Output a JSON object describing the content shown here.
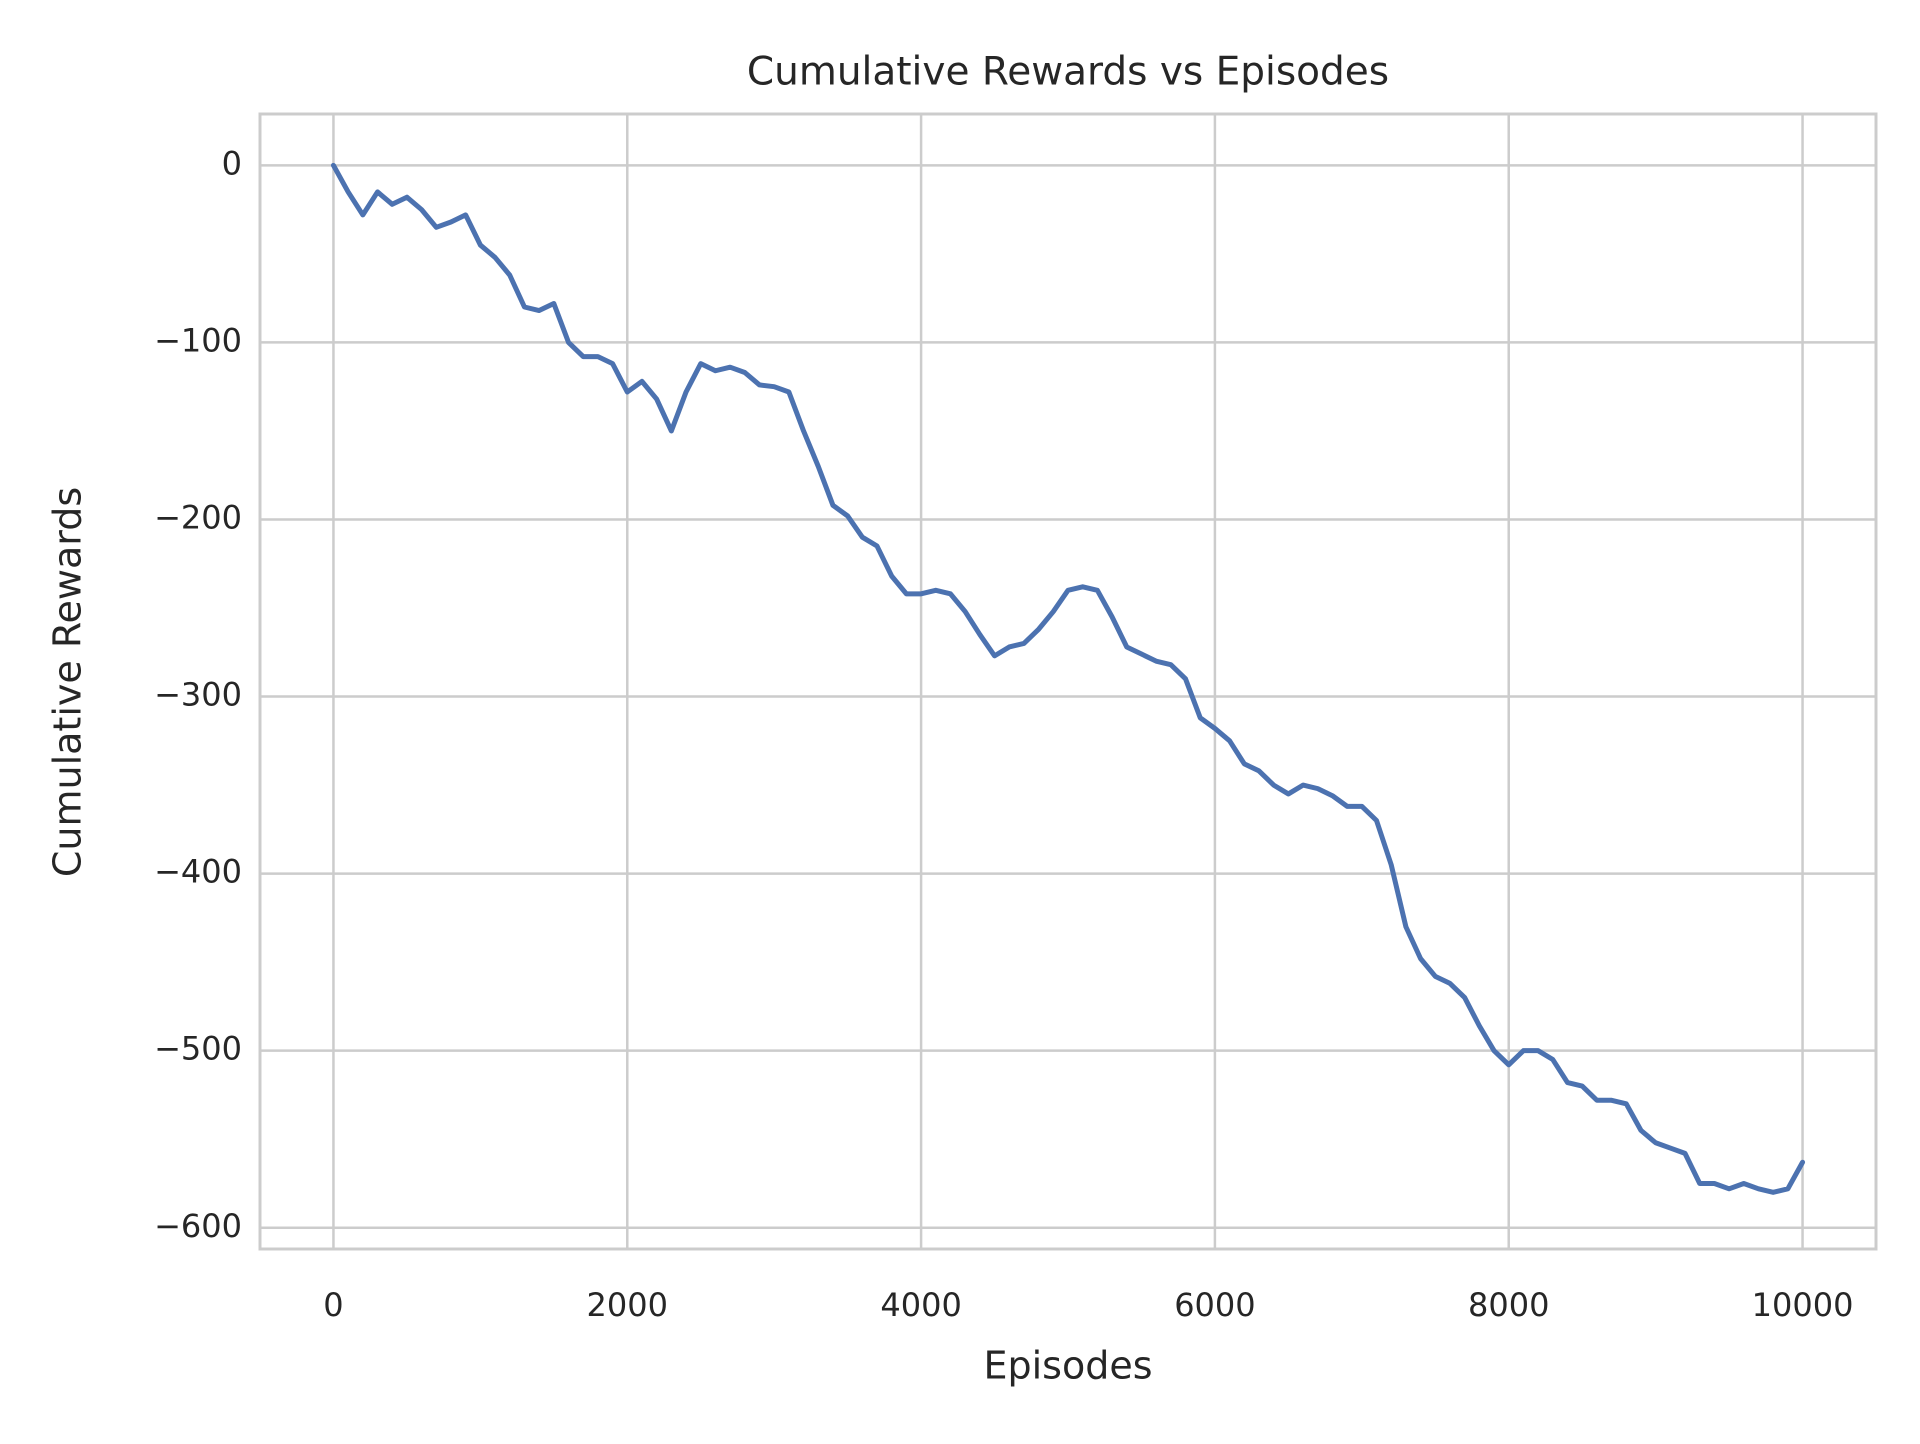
{
  "chart_data": {
    "type": "line",
    "title": "Cumulative Rewards vs Episodes",
    "x_label": "Episodes",
    "y_label": "Cumulative Rewards",
    "grid": true,
    "xlim": [
      -500,
      10500
    ],
    "ylim": [
      -612,
      29
    ],
    "xticks": [
      0,
      2000,
      4000,
      6000,
      8000,
      10000
    ],
    "yticks": [
      0,
      {
        "value": -100,
        "label": "−100"
      },
      {
        "value": -200,
        "label": "−200"
      },
      {
        "value": -300,
        "label": "−300"
      },
      {
        "value": -400,
        "label": "−400"
      },
      {
        "value": -500,
        "label": "−500"
      },
      {
        "value": -600,
        "label": "−600"
      }
    ],
    "x": [
      0,
      100,
      200,
      300,
      400,
      500,
      600,
      700,
      800,
      900,
      1000,
      1100,
      1200,
      1300,
      1400,
      1500,
      1600,
      1700,
      1800,
      1900,
      2000,
      2100,
      2200,
      2300,
      2400,
      2500,
      2600,
      2700,
      2800,
      2900,
      3000,
      3100,
      3200,
      3300,
      3400,
      3500,
      3600,
      3700,
      3800,
      3900,
      4000,
      4100,
      4200,
      4300,
      4400,
      4500,
      4600,
      4700,
      4800,
      4900,
      5000,
      5100,
      5200,
      5300,
      5400,
      5500,
      5600,
      5700,
      5800,
      5900,
      6000,
      6100,
      6200,
      6300,
      6400,
      6500,
      6600,
      6700,
      6800,
      6900,
      7000,
      7100,
      7200,
      7300,
      7400,
      7500,
      7600,
      7700,
      7800,
      7900,
      8000,
      8100,
      8200,
      8300,
      8400,
      8500,
      8600,
      8700,
      8800,
      8900,
      9000,
      9100,
      9200,
      9300,
      9400,
      9500,
      9600,
      9700,
      9800,
      9900,
      10000
    ],
    "series": [
      {
        "color": "#4c72b0",
        "values": [
          0,
          -15,
          -28,
          -15,
          -22,
          -18,
          -25,
          -35,
          -32,
          -28,
          -45,
          -52,
          -62,
          -80,
          -82,
          -78,
          -100,
          -108,
          -108,
          -112,
          -128,
          -122,
          -132,
          -150,
          -128,
          -112,
          -116,
          -114,
          -117,
          -124,
          -125,
          -128,
          -150,
          -170,
          -192,
          -198,
          -210,
          -215,
          -232,
          -242,
          -242,
          -240,
          -242,
          -252,
          -265,
          -277,
          -272,
          -270,
          -262,
          -252,
          -240,
          -238,
          -240,
          -255,
          -272,
          -276,
          -280,
          -282,
          -290,
          -312,
          -318,
          -325,
          -338,
          -342,
          -350,
          -355,
          -350,
          -352,
          -356,
          -362,
          -362,
          -370,
          -395,
          -430,
          -448,
          -458,
          -462,
          -470,
          -486,
          -500,
          -508,
          -500,
          -500,
          -505,
          -518,
          -520,
          -528,
          -528,
          -530,
          -545,
          -552,
          -555,
          -558,
          -575,
          -575,
          -578,
          -575,
          -578,
          -580,
          -578,
          -563
        ]
      }
    ]
  }
}
